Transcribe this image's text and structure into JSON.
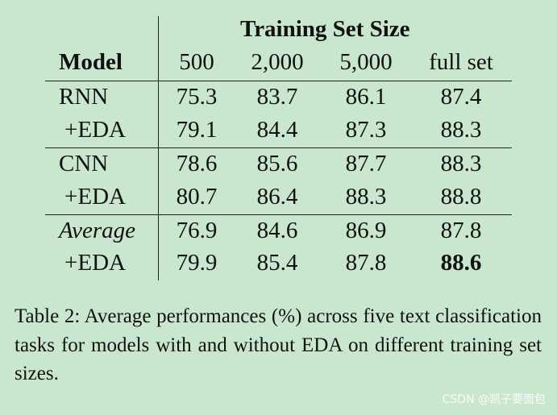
{
  "table": {
    "group_header": "Training Set Size",
    "model_header": "Model",
    "columns": [
      "500",
      "2,000",
      "5,000",
      "full set"
    ],
    "rows": [
      {
        "model": "RNN",
        "values": [
          "75.3",
          "83.7",
          "86.1",
          "87.4"
        ]
      },
      {
        "model": "+EDA",
        "values": [
          "79.1",
          "84.4",
          "87.3",
          "88.3"
        ]
      },
      {
        "model": "CNN",
        "values": [
          "78.6",
          "85.6",
          "87.7",
          "88.3"
        ]
      },
      {
        "model": "+EDA",
        "values": [
          "80.7",
          "86.4",
          "88.3",
          "88.8"
        ]
      },
      {
        "model": "Average",
        "values": [
          "76.9",
          "84.6",
          "86.9",
          "87.8"
        ]
      },
      {
        "model": "+EDA",
        "values": [
          "79.9",
          "85.4",
          "87.8",
          "88.6"
        ]
      }
    ]
  },
  "caption": "Table 2:  Average performances (%) across five text classification tasks for models with and without EDA on different training set sizes.",
  "watermark": "CSDN @凯子要面包"
}
